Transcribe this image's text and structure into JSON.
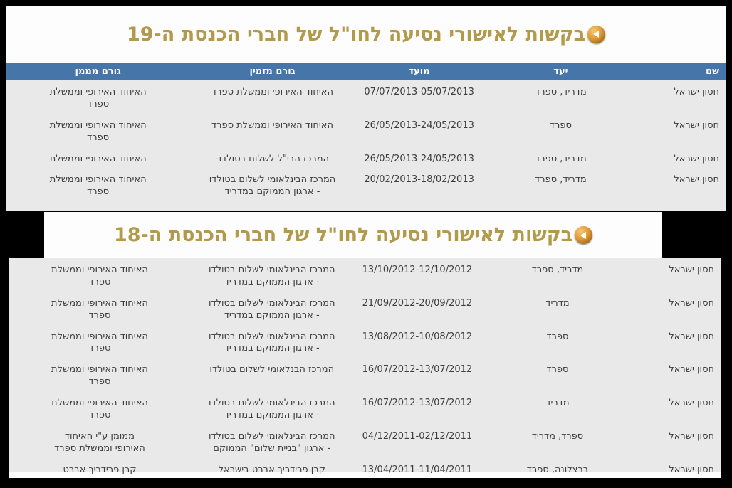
{
  "colors": {
    "background": "#000000",
    "panel": "#fdfdfd",
    "title_gold": "#b3994a",
    "header_blue": "#4575a9",
    "row_gray": "#e9e9e9",
    "cell_text": "#3d3d3d"
  },
  "icons": {
    "title_bullet": "back-arrow-sphere"
  },
  "tables": [
    {
      "title": "בקשות לאישורי נסיעה לחו\"ל של חברי הכנסת ה-19",
      "columns": [
        "שם",
        "יעד",
        "מועד",
        "גורם מזמין",
        "גורם מממן"
      ],
      "rows": [
        {
          "name": "חסון ישראל",
          "destination": "מדריד, ספרד",
          "date": "07/07/2013-05/07/2013",
          "inviter": "האיחוד האירופי וממשלת ספרד",
          "funder": "האיחוד האירופי וממשלת\nספרד"
        },
        {
          "name": "חסון ישראל",
          "destination": "ספרד",
          "date": "26/05/2013-24/05/2013",
          "inviter": "האיחוד האירופי וממשלת ספרד",
          "funder": "האיחוד האירופי וממשלת\nספרד"
        },
        {
          "name": "חסון ישראל",
          "destination": "מדריד, ספרד",
          "date": "26/05/2013-24/05/2013",
          "inviter": "המרכז הבי\"ל לשלום בטולדו-",
          "funder": "האיחוד האירופי וממשלת"
        },
        {
          "name": "חסון ישראל",
          "destination": "מדריד, ספרד",
          "date": "20/02/2013-18/02/2013",
          "inviter": "המרכז הבינלאומי לשלום בטולדו\n- ארגון הממוקם במדריד",
          "funder": "האיחוד האירופי וממשלת\nספרד"
        }
      ]
    },
    {
      "title": "בקשות לאישורי נסיעה לחו\"ל של חברי הכנסת ה-18",
      "columns": null,
      "rows": [
        {
          "name": "חסון ישראל",
          "destination": "מדריד, ספרד",
          "date": "13/10/2012-12/10/2012",
          "inviter": "המרכז הבינלאומי לשלום בטולדו\n- ארגון הממוקם במדריד",
          "funder": "האיחוד האירופי וממשלת\nספרד"
        },
        {
          "name": "חסון ישראל",
          "destination": "מדריד",
          "date": "21/09/2012-20/09/2012",
          "inviter": "המרכז הבינלאומי לשלום בטולדו\n- ארגון הממוקם במדריד",
          "funder": "האיחוד האירופי וממשלת\nספרד"
        },
        {
          "name": "חסון ישראל",
          "destination": "ספרד",
          "date": "13/08/2012-10/08/2012",
          "inviter": "המרכז הבינלאומי לשלום בטולדו\n- ארגון הממוקם במדריד",
          "funder": "האיחוד האירופי וממשלת\nספרד"
        },
        {
          "name": "חסון ישראל",
          "destination": "ספרד",
          "date": "16/07/2012-13/07/2012",
          "inviter": "המרכז הבנלאומי לשלום בטולדו",
          "funder": "האיחוד האירופי וממשלת\nספרד"
        },
        {
          "name": "חסון ישראל",
          "destination": "מדריד",
          "date": "16/07/2012-13/07/2012",
          "inviter": "המרכז הבינלאומי לשלום בטולדו\n- ארגון הממוקם במדריד",
          "funder": "האיחוד האירופי וממשלת\nספרד"
        },
        {
          "name": "חסון ישראל",
          "destination": "ספרד, מדריד",
          "date": "04/12/2011-02/12/2011",
          "inviter": "המרכז הבינלאומי לשלום בטולדו\n- ארגון \"בניית שלום\" הממוקם",
          "funder": "ממומן ע\"י האיחוד\nהאירופי וממשלת ספרד"
        },
        {
          "name": "חסון ישראל",
          "destination": "ברצלונה, ספרד",
          "date": "13/04/2011-11/04/2011",
          "inviter": "קרן פרידריך אברט בישראל",
          "funder": "קרן פרידריך אברט"
        }
      ]
    }
  ]
}
